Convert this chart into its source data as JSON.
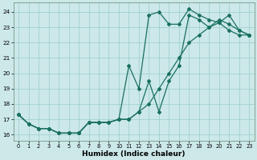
{
  "xlabel": "Humidex (Indice chaleur)",
  "bg_color": "#cce8e8",
  "line_color": "#1a7060",
  "grid_color": "#99cccc",
  "xlim": [
    -0.5,
    23.5
  ],
  "ylim": [
    15.6,
    24.6
  ],
  "xticks": [
    0,
    1,
    2,
    3,
    4,
    5,
    6,
    7,
    8,
    9,
    10,
    11,
    12,
    13,
    14,
    15,
    16,
    17,
    18,
    19,
    20,
    21,
    22,
    23
  ],
  "yticks": [
    16,
    17,
    18,
    19,
    20,
    21,
    22,
    23,
    24
  ],
  "line1_x": [
    0,
    1,
    2,
    3,
    4,
    5,
    6,
    7,
    8,
    9,
    10,
    11,
    12,
    13,
    14,
    15,
    16,
    17,
    18,
    19,
    20,
    21,
    22,
    23
  ],
  "line1_y": [
    17.3,
    16.7,
    16.4,
    16.4,
    16.1,
    16.1,
    16.1,
    16.8,
    16.8,
    16.8,
    17.0,
    17.0,
    17.5,
    18.0,
    19.0,
    20.0,
    21.0,
    22.0,
    22.5,
    23.0,
    23.3,
    22.8,
    22.5,
    22.5
  ],
  "line2_x": [
    0,
    1,
    2,
    3,
    4,
    5,
    6,
    7,
    8,
    9,
    10,
    11,
    12,
    13,
    14,
    15,
    16,
    17,
    18,
    19,
    20,
    21,
    22,
    23
  ],
  "line2_y": [
    17.3,
    16.7,
    16.4,
    16.4,
    16.1,
    16.1,
    16.1,
    16.8,
    16.8,
    16.8,
    17.0,
    20.5,
    19.0,
    23.8,
    24.0,
    23.2,
    23.2,
    24.2,
    23.8,
    23.5,
    23.3,
    23.8,
    22.8,
    22.5
  ],
  "line3_x": [
    0,
    1,
    2,
    3,
    4,
    5,
    6,
    7,
    8,
    9,
    10,
    11,
    12,
    13,
    14,
    15,
    16,
    17,
    18,
    19,
    20,
    21,
    22,
    23
  ],
  "line3_y": [
    17.3,
    16.7,
    16.4,
    16.4,
    16.1,
    16.1,
    16.1,
    16.8,
    16.8,
    16.8,
    17.0,
    17.0,
    17.5,
    19.5,
    17.5,
    19.5,
    20.5,
    23.8,
    23.5,
    23.0,
    23.5,
    23.2,
    22.8,
    22.5
  ]
}
